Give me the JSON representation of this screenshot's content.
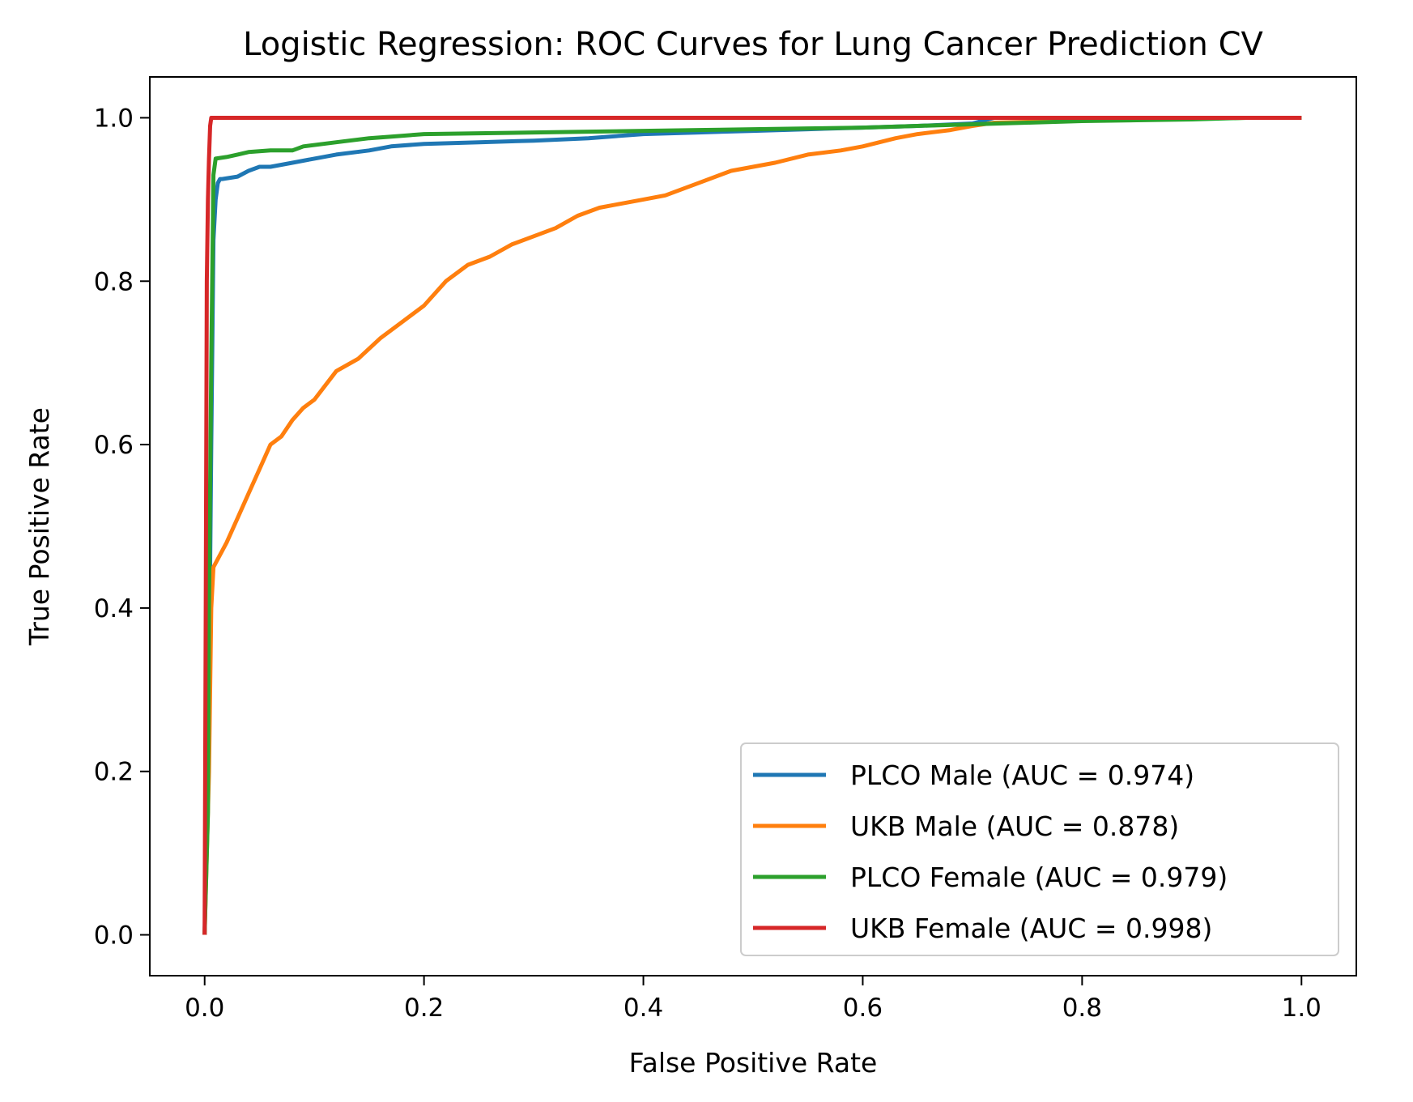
{
  "chart_data": {
    "type": "line",
    "title": "Logistic Regression: ROC Curves for Lung Cancer Prediction CV",
    "xlabel": "False Positive Rate",
    "ylabel": "True Positive Rate",
    "xlim": [
      -0.05,
      1.05
    ],
    "ylim": [
      -0.05,
      1.05
    ],
    "x_ticks": [
      0.0,
      0.2,
      0.4,
      0.6,
      0.8,
      1.0
    ],
    "x_tick_labels": [
      "0.0",
      "0.2",
      "0.4",
      "0.6",
      "0.8",
      "1.0"
    ],
    "y_ticks": [
      0.0,
      0.2,
      0.4,
      0.6,
      0.8,
      1.0
    ],
    "y_tick_labels": [
      "0.0",
      "0.2",
      "0.4",
      "0.6",
      "0.8",
      "1.0"
    ],
    "grid": false,
    "legend_position": "lower-right",
    "series": [
      {
        "name": "PLCO Male (AUC = 0.974)",
        "color": "#1f77b4",
        "x": [
          0,
          0.004,
          0.006,
          0.008,
          0.01,
          0.012,
          0.014,
          0.016,
          0.03,
          0.04,
          0.05,
          0.06,
          0.08,
          0.1,
          0.12,
          0.15,
          0.17,
          0.2,
          0.25,
          0.3,
          0.35,
          0.4,
          0.45,
          0.5,
          0.55,
          0.6,
          0.65,
          0.7,
          0.72,
          0.75,
          0.8,
          0.85,
          0.9,
          0.95,
          1.0
        ],
        "y": [
          0,
          0.3,
          0.6,
          0.85,
          0.9,
          0.92,
          0.925,
          0.925,
          0.928,
          0.935,
          0.94,
          0.94,
          0.945,
          0.95,
          0.955,
          0.96,
          0.965,
          0.968,
          0.97,
          0.972,
          0.975,
          0.98,
          0.982,
          0.984,
          0.986,
          0.988,
          0.99,
          0.993,
          1.0,
          1.0,
          1.0,
          1.0,
          1.0,
          1.0,
          1.0
        ]
      },
      {
        "name": "UKB Male (AUC = 0.878)",
        "color": "#ff7f0e",
        "x": [
          0,
          0.004,
          0.006,
          0.008,
          0.02,
          0.03,
          0.04,
          0.05,
          0.06,
          0.07,
          0.08,
          0.09,
          0.1,
          0.12,
          0.14,
          0.16,
          0.18,
          0.2,
          0.22,
          0.24,
          0.26,
          0.28,
          0.3,
          0.32,
          0.34,
          0.36,
          0.38,
          0.4,
          0.42,
          0.45,
          0.48,
          0.5,
          0.52,
          0.55,
          0.58,
          0.6,
          0.63,
          0.65,
          0.68,
          0.7,
          0.72,
          0.75,
          0.8,
          0.85,
          0.9,
          0.95,
          1.0
        ],
        "y": [
          0,
          0.2,
          0.4,
          0.45,
          0.48,
          0.51,
          0.54,
          0.57,
          0.6,
          0.61,
          0.63,
          0.645,
          0.655,
          0.69,
          0.705,
          0.73,
          0.75,
          0.77,
          0.8,
          0.82,
          0.83,
          0.845,
          0.855,
          0.865,
          0.88,
          0.89,
          0.895,
          0.9,
          0.905,
          0.92,
          0.935,
          0.94,
          0.945,
          0.955,
          0.96,
          0.965,
          0.975,
          0.98,
          0.985,
          0.99,
          0.994,
          0.995,
          0.997,
          0.998,
          0.999,
          1.0,
          1.0
        ]
      },
      {
        "name": "PLCO Female (AUC = 0.979)",
        "color": "#2ca02c",
        "x": [
          0,
          0.003,
          0.004,
          0.006,
          0.008,
          0.01,
          0.02,
          0.03,
          0.04,
          0.06,
          0.08,
          0.09,
          0.12,
          0.15,
          0.17,
          0.2,
          0.25,
          0.3,
          0.35,
          0.4,
          0.45,
          0.5,
          0.55,
          0.6,
          0.65,
          0.7,
          0.75,
          0.8,
          0.85,
          0.9,
          0.95,
          1.0
        ],
        "y": [
          0,
          0.15,
          0.4,
          0.7,
          0.93,
          0.95,
          0.952,
          0.955,
          0.958,
          0.96,
          0.96,
          0.965,
          0.97,
          0.975,
          0.977,
          0.98,
          0.981,
          0.982,
          0.983,
          0.984,
          0.985,
          0.986,
          0.987,
          0.988,
          0.99,
          0.992,
          0.994,
          0.996,
          0.997,
          0.998,
          1.0,
          1.0
        ]
      },
      {
        "name": "UKB Female (AUC = 0.998)",
        "color": "#d62728",
        "x": [
          0,
          0.001,
          0.002,
          0.003,
          0.004,
          0.005,
          0.006,
          0.1,
          0.5,
          1.0
        ],
        "y": [
          0,
          0.4,
          0.8,
          0.9,
          0.95,
          0.99,
          1.0,
          1.0,
          1.0,
          1.0
        ]
      }
    ]
  }
}
